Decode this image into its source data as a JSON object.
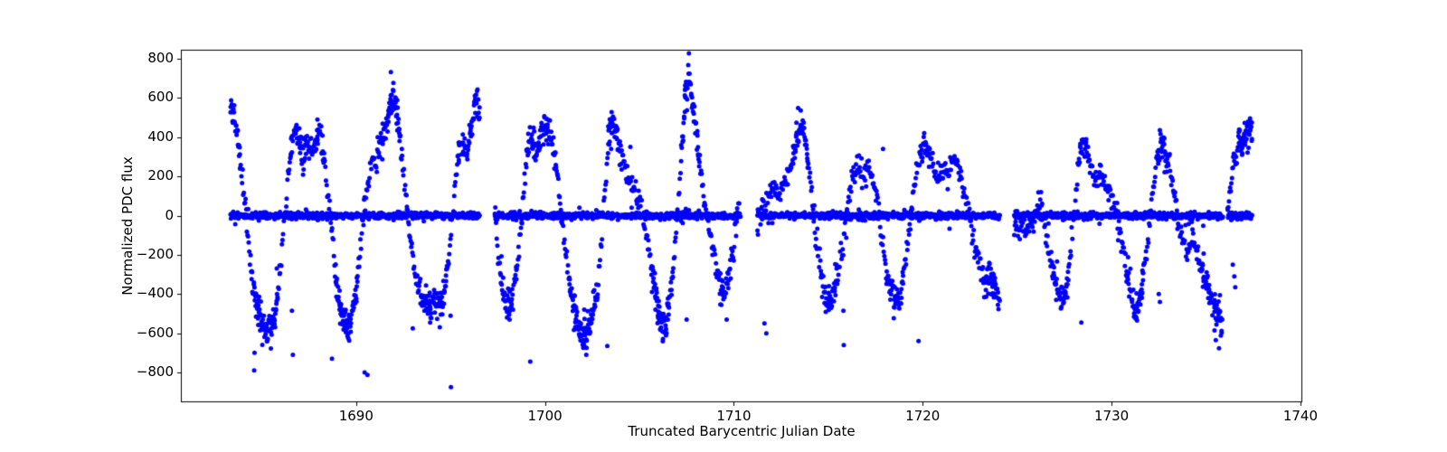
{
  "chart_data": {
    "type": "scatter",
    "title": "",
    "xlabel": "Truncated Barycentric Julian Date",
    "ylabel": "Normalized PDC flux",
    "marker_color": "#0000ff",
    "marker_radius_px": 2.5,
    "axis_color": "#000000",
    "background_color": "#ffffff",
    "grid": false,
    "legend": "none",
    "xlim": [
      1680.72,
      1740.1
    ],
    "ylim": [
      -952,
      846
    ],
    "xticks": [
      1690,
      1700,
      1710,
      1720,
      1730,
      1740
    ],
    "xtick_labels": [
      "1690",
      "1700",
      "1710",
      "1720",
      "1730",
      "1740"
    ],
    "yticks": [
      -800,
      -600,
      -400,
      -200,
      0,
      200,
      400,
      600,
      800
    ],
    "ytick_labels": [
      "−800",
      "−600",
      "−400",
      "−200",
      "0",
      "200",
      "400",
      "600",
      "800"
    ],
    "zero_band_segments": [
      [
        1683.35,
        1696.55
      ],
      [
        1697.35,
        1710.35
      ],
      [
        1711.25,
        1724.1
      ],
      [
        1724.85,
        1735.9
      ],
      [
        1736.15,
        1737.45
      ]
    ],
    "sampling": {
      "seed": 42,
      "band_cadence": 0.0208,
      "band_sigma": 8,
      "band_wide_fraction": 0.06,
      "band_wide_sigma": 19,
      "osc_cadence": 0.032,
      "osc_jitter_x": 0.012,
      "osc_jitter_y": 32,
      "cluster_threshold": 280,
      "cluster_prob": 0.65,
      "cluster_jitter_x": 0.05,
      "cluster_jitter_y": 48
    },
    "oscillation_anchors": [
      [
        [
          1683.35,
          555
        ],
        [
          1683.5,
          490
        ],
        [
          1683.7,
          400
        ],
        [
          1683.9,
          260
        ],
        [
          1684.1,
          60
        ],
        [
          1684.3,
          -150
        ],
        [
          1684.55,
          -360
        ],
        [
          1684.8,
          -480
        ],
        [
          1685.0,
          -545
        ],
        [
          1685.2,
          -600
        ],
        [
          1685.45,
          -570
        ],
        [
          1685.7,
          -520
        ],
        [
          1685.9,
          -360
        ],
        [
          1686.1,
          -130
        ],
        [
          1686.35,
          150
        ],
        [
          1686.6,
          370
        ],
        [
          1686.8,
          435
        ],
        [
          1687.0,
          360
        ],
        [
          1687.2,
          310
        ],
        [
          1687.4,
          385
        ],
        [
          1687.6,
          300
        ],
        [
          1687.8,
          350
        ],
        [
          1688.0,
          425
        ],
        [
          1688.2,
          360
        ],
        [
          1688.45,
          180
        ],
        [
          1688.7,
          -80
        ],
        [
          1688.95,
          -330
        ],
        [
          1689.2,
          -490
        ],
        [
          1689.45,
          -580
        ],
        [
          1689.7,
          -540
        ],
        [
          1689.95,
          -420
        ],
        [
          1690.2,
          -180
        ],
        [
          1690.45,
          60
        ],
        [
          1690.7,
          210
        ],
        [
          1690.9,
          275
        ],
        [
          1691.1,
          250
        ],
        [
          1691.35,
          380
        ],
        [
          1691.6,
          470
        ],
        [
          1691.85,
          560
        ],
        [
          1692.0,
          585
        ],
        [
          1692.2,
          470
        ],
        [
          1692.45,
          270
        ],
        [
          1692.7,
          50
        ],
        [
          1692.95,
          -170
        ],
        [
          1693.2,
          -310
        ],
        [
          1693.5,
          -420
        ],
        [
          1693.8,
          -465
        ],
        [
          1694.05,
          -430
        ],
        [
          1694.3,
          -445
        ],
        [
          1694.6,
          -430
        ],
        [
          1694.85,
          -280
        ],
        [
          1695.05,
          -60
        ],
        [
          1695.25,
          160
        ],
        [
          1695.45,
          330
        ],
        [
          1695.65,
          380
        ],
        [
          1695.85,
          300
        ],
        [
          1696.05,
          400
        ],
        [
          1696.25,
          560
        ],
        [
          1696.4,
          600
        ],
        [
          1696.55,
          520
        ]
      ],
      [
        [
          1697.35,
          30
        ],
        [
          1697.5,
          -160
        ],
        [
          1697.7,
          -350
        ],
        [
          1697.9,
          -450
        ],
        [
          1698.1,
          -475
        ],
        [
          1698.3,
          -420
        ],
        [
          1698.55,
          -250
        ],
        [
          1698.8,
          0
        ],
        [
          1699.0,
          280
        ],
        [
          1699.2,
          410
        ],
        [
          1699.4,
          360
        ],
        [
          1699.6,
          310
        ],
        [
          1699.8,
          430
        ],
        [
          1700.0,
          460
        ],
        [
          1700.2,
          420
        ],
        [
          1700.45,
          350
        ],
        [
          1700.7,
          200
        ],
        [
          1700.95,
          -60
        ],
        [
          1701.2,
          -280
        ],
        [
          1701.45,
          -430
        ],
        [
          1701.7,
          -540
        ],
        [
          1701.95,
          -610
        ],
        [
          1702.2,
          -600
        ],
        [
          1702.45,
          -540
        ],
        [
          1702.7,
          -420
        ],
        [
          1702.95,
          -180
        ],
        [
          1703.2,
          180
        ],
        [
          1703.4,
          430
        ],
        [
          1703.55,
          495
        ],
        [
          1703.75,
          440
        ],
        [
          1703.95,
          340
        ],
        [
          1704.2,
          240
        ],
        [
          1704.5,
          170
        ],
        [
          1704.8,
          120
        ],
        [
          1705.05,
          60
        ],
        [
          1705.3,
          -50
        ],
        [
          1705.55,
          -200
        ],
        [
          1705.8,
          -370
        ],
        [
          1706.05,
          -500
        ],
        [
          1706.3,
          -570
        ],
        [
          1706.55,
          -480
        ],
        [
          1706.8,
          -260
        ],
        [
          1707.05,
          60
        ],
        [
          1707.3,
          420
        ],
        [
          1707.5,
          640
        ],
        [
          1707.62,
          735
        ],
        [
          1707.8,
          590
        ],
        [
          1708.0,
          430
        ],
        [
          1708.25,
          230
        ],
        [
          1708.5,
          70
        ],
        [
          1708.75,
          -90
        ],
        [
          1709.0,
          -230
        ],
        [
          1709.25,
          -350
        ],
        [
          1709.5,
          -420
        ],
        [
          1709.7,
          -360
        ],
        [
          1709.9,
          -220
        ],
        [
          1710.1,
          -60
        ],
        [
          1710.3,
          90
        ]
      ],
      [
        [
          1711.25,
          -50
        ],
        [
          1711.45,
          30
        ],
        [
          1711.7,
          100
        ],
        [
          1711.95,
          150
        ],
        [
          1712.2,
          115
        ],
        [
          1712.45,
          95
        ],
        [
          1712.7,
          155
        ],
        [
          1712.95,
          235
        ],
        [
          1713.2,
          330
        ],
        [
          1713.45,
          430
        ],
        [
          1713.65,
          465
        ],
        [
          1713.85,
          370
        ],
        [
          1714.1,
          130
        ],
        [
          1714.35,
          -110
        ],
        [
          1714.6,
          -280
        ],
        [
          1714.85,
          -420
        ],
        [
          1715.05,
          -455
        ],
        [
          1715.3,
          -380
        ],
        [
          1715.55,
          -270
        ],
        [
          1715.8,
          -120
        ],
        [
          1716.05,
          60
        ],
        [
          1716.3,
          200
        ],
        [
          1716.55,
          280
        ],
        [
          1716.8,
          180
        ],
        [
          1717.05,
          245
        ],
        [
          1717.3,
          205
        ],
        [
          1717.55,
          110
        ],
        [
          1717.8,
          -90
        ],
        [
          1718.05,
          -280
        ],
        [
          1718.35,
          -390
        ],
        [
          1718.6,
          -430
        ],
        [
          1718.85,
          -390
        ],
        [
          1719.1,
          -220
        ],
        [
          1719.35,
          -20
        ],
        [
          1719.6,
          180
        ],
        [
          1719.85,
          300
        ],
        [
          1720.1,
          380
        ],
        [
          1720.35,
          310
        ],
        [
          1720.6,
          230
        ],
        [
          1720.85,
          205
        ],
        [
          1721.1,
          260
        ],
        [
          1721.35,
          215
        ],
        [
          1721.6,
          290
        ],
        [
          1721.85,
          250
        ],
        [
          1722.1,
          175
        ],
        [
          1722.35,
          60
        ],
        [
          1722.6,
          -80
        ],
        [
          1722.85,
          -190
        ],
        [
          1723.1,
          -260
        ],
        [
          1723.35,
          -350
        ],
        [
          1723.6,
          -290
        ],
        [
          1723.85,
          -380
        ],
        [
          1724.1,
          -440
        ]
      ],
      [
        [
          1724.85,
          -40
        ],
        [
          1725.05,
          -85
        ],
        [
          1725.25,
          -55
        ],
        [
          1725.45,
          -80
        ],
        [
          1725.65,
          -45
        ],
        [
          1725.85,
          -20
        ],
        [
          1726.05,
          45
        ],
        [
          1726.25,
          80
        ],
        [
          1726.45,
          -30
        ],
        [
          1726.65,
          -160
        ],
        [
          1726.85,
          -270
        ],
        [
          1727.05,
          -350
        ],
        [
          1727.3,
          -430
        ],
        [
          1727.55,
          -380
        ],
        [
          1727.8,
          -220
        ],
        [
          1728.05,
          40
        ],
        [
          1728.3,
          300
        ],
        [
          1728.5,
          360
        ],
        [
          1728.7,
          330
        ],
        [
          1728.95,
          230
        ],
        [
          1729.2,
          185
        ],
        [
          1729.45,
          215
        ],
        [
          1729.7,
          175
        ],
        [
          1729.95,
          110
        ],
        [
          1730.2,
          20
        ],
        [
          1730.45,
          -100
        ],
        [
          1730.7,
          -230
        ],
        [
          1730.95,
          -360
        ],
        [
          1731.2,
          -470
        ],
        [
          1731.4,
          -490
        ],
        [
          1731.65,
          -340
        ],
        [
          1731.9,
          -140
        ],
        [
          1732.15,
          110
        ],
        [
          1732.4,
          290
        ],
        [
          1732.6,
          400
        ],
        [
          1732.8,
          345
        ],
        [
          1733.05,
          230
        ],
        [
          1733.3,
          120
        ],
        [
          1733.55,
          -40
        ],
        [
          1733.8,
          -140
        ],
        [
          1734.05,
          -185
        ],
        [
          1734.3,
          -120
        ],
        [
          1734.55,
          -200
        ],
        [
          1734.8,
          -280
        ],
        [
          1735.1,
          -360
        ],
        [
          1735.4,
          -450
        ],
        [
          1735.65,
          -500
        ],
        [
          1735.88,
          -530
        ]
      ],
      [
        [
          1736.15,
          30
        ],
        [
          1736.3,
          150
        ],
        [
          1736.45,
          300
        ],
        [
          1736.6,
          240
        ],
        [
          1736.75,
          400
        ],
        [
          1736.9,
          320
        ],
        [
          1737.05,
          460
        ],
        [
          1737.2,
          390
        ],
        [
          1737.35,
          470
        ],
        [
          1737.45,
          380
        ]
      ]
    ],
    "outliers": [
      [
        1684.6,
        -790
      ],
      [
        1684.62,
        -700
      ],
      [
        1686.6,
        -485
      ],
      [
        1686.65,
        -710
      ],
      [
        1687.95,
        490
      ],
      [
        1688.72,
        -730
      ],
      [
        1690.45,
        -800
      ],
      [
        1690.6,
        -812
      ],
      [
        1693.0,
        -575
      ],
      [
        1693.8,
        -500
      ],
      [
        1693.92,
        -545
      ],
      [
        1695.0,
        -510
      ],
      [
        1695.02,
        -875
      ],
      [
        1699.22,
        -745
      ],
      [
        1703.3,
        -665
      ],
      [
        1704.52,
        350
      ],
      [
        1707.5,
        -530
      ],
      [
        1709.62,
        -530
      ],
      [
        1711.62,
        -550
      ],
      [
        1711.72,
        -600
      ],
      [
        1715.8,
        -485
      ],
      [
        1715.82,
        -660
      ],
      [
        1717.9,
        340
      ],
      [
        1719.78,
        -640
      ],
      [
        1728.4,
        -545
      ],
      [
        1732.5,
        -400
      ],
      [
        1732.56,
        -440
      ],
      [
        1735.45,
        -585
      ],
      [
        1735.52,
        -635
      ],
      [
        1736.42,
        -250
      ],
      [
        1736.5,
        -310
      ],
      [
        1736.55,
        -365
      ]
    ]
  }
}
